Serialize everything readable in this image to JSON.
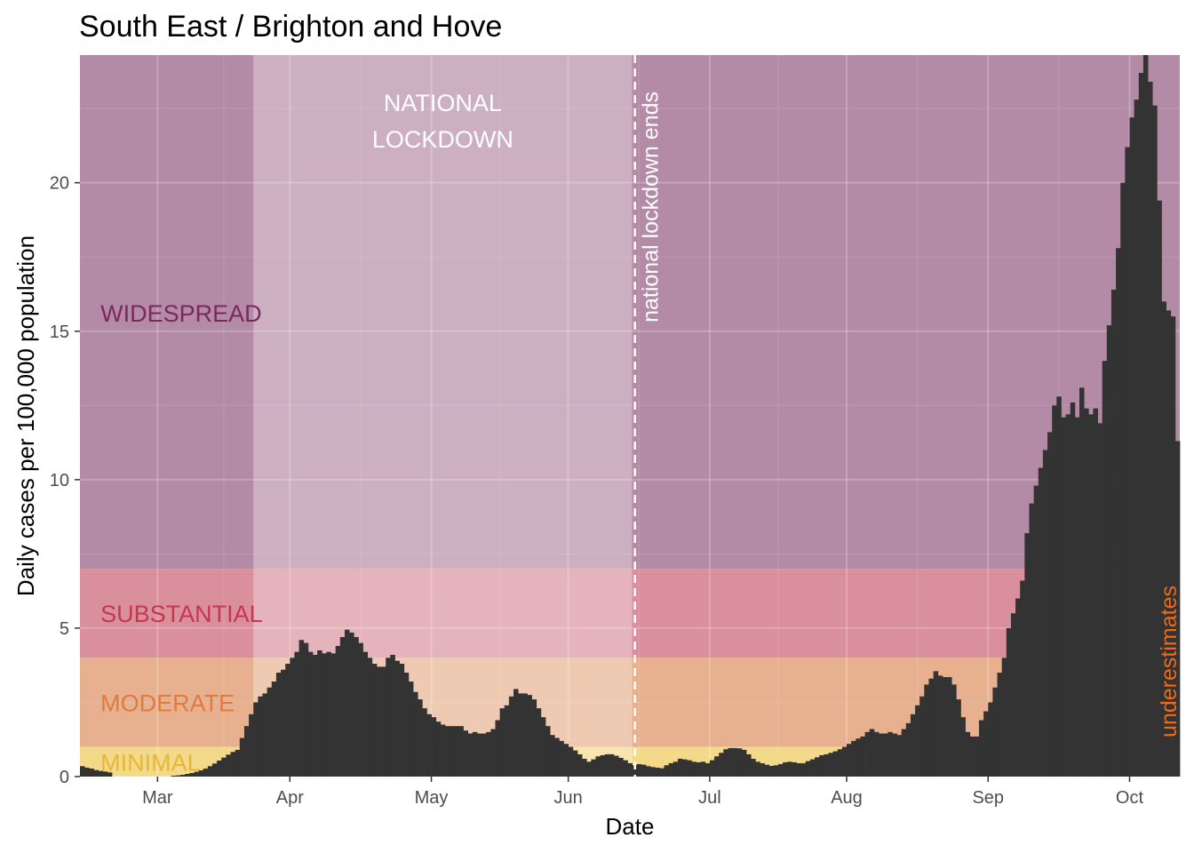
{
  "chart_data": {
    "type": "bar",
    "title": "South East / Brighton and Hove",
    "xlabel": "Date",
    "ylabel": "Daily cases per 100,000 population",
    "ylim": [
      0,
      24.3
    ],
    "y_ticks": [
      0,
      5,
      10,
      15,
      20
    ],
    "x_ticks": [
      "Mar",
      "Apr",
      "May",
      "Jun",
      "Jul",
      "Aug",
      "Sep",
      "Oct"
    ],
    "x_start_month": "Feb",
    "grid": true,
    "bar_color": "#333333",
    "zones": [
      {
        "label": "MINIMAL",
        "from": 0,
        "to": 1,
        "fill": "#f3d98a",
        "text_color": "#e6b836"
      },
      {
        "label": "MODERATE",
        "from": 1,
        "to": 4,
        "fill": "#e7b190",
        "text_color": "#e07b40"
      },
      {
        "label": "SUBSTANTIAL",
        "from": 4,
        "to": 7,
        "fill": "#d9909c",
        "text_color": "#c7364e"
      },
      {
        "label": "WIDESPREAD",
        "from": 7,
        "to": 24.3,
        "fill": "#b48ba6",
        "text_color": "#7d285d"
      }
    ],
    "lockdown": {
      "label_line1": "NATIONAL",
      "label_line2": "LOCKDOWN",
      "start_day": 38,
      "end_day": 121,
      "overlay": "#ffffff",
      "overlay_opacity": 0.32
    },
    "lockdown_end_annotation": "national lockdown ends",
    "underestimates_annotation": "underestimates",
    "underestimates_color": "#f06a16",
    "values": [
      0.35,
      0.3,
      0.27,
      0.22,
      0.19,
      0.17,
      0.14,
      0.0,
      0.0,
      0.0,
      0.0,
      0.0,
      0.0,
      0.0,
      0.0,
      0.0,
      0.0,
      0.0,
      0.0,
      0.0,
      0.03,
      0.04,
      0.06,
      0.09,
      0.12,
      0.16,
      0.21,
      0.27,
      0.35,
      0.44,
      0.54,
      0.64,
      0.74,
      0.83,
      0.9,
      1.3,
      1.7,
      2.1,
      2.5,
      2.7,
      2.8,
      3.0,
      3.2,
      3.5,
      3.6,
      3.8,
      4.0,
      4.2,
      4.6,
      4.5,
      4.2,
      4.1,
      4.25,
      4.15,
      4.2,
      4.15,
      4.4,
      4.7,
      4.95,
      4.85,
      4.7,
      4.5,
      4.2,
      4.0,
      3.8,
      3.7,
      3.7,
      4.0,
      4.1,
      3.9,
      3.8,
      3.5,
      3.2,
      2.85,
      2.6,
      2.3,
      2.1,
      2.0,
      1.85,
      1.75,
      1.7,
      1.7,
      1.7,
      1.7,
      1.55,
      1.45,
      1.5,
      1.45,
      1.45,
      1.5,
      1.6,
      1.9,
      2.3,
      2.4,
      2.7,
      2.95,
      2.8,
      2.8,
      2.75,
      2.6,
      2.3,
      2.0,
      1.7,
      1.4,
      1.3,
      1.2,
      1.1,
      1.0,
      0.88,
      0.75,
      0.6,
      0.5,
      0.58,
      0.68,
      0.72,
      0.75,
      0.75,
      0.7,
      0.63,
      0.55,
      0.45,
      0.38,
      0.42,
      0.4,
      0.35,
      0.32,
      0.3,
      0.28,
      0.38,
      0.45,
      0.5,
      0.6,
      0.58,
      0.55,
      0.5,
      0.48,
      0.5,
      0.45,
      0.55,
      0.68,
      0.8,
      0.92,
      0.96,
      0.96,
      0.95,
      0.9,
      0.75,
      0.6,
      0.5,
      0.45,
      0.4,
      0.36,
      0.38,
      0.42,
      0.48,
      0.5,
      0.48,
      0.45,
      0.45,
      0.52,
      0.58,
      0.65,
      0.72,
      0.75,
      0.8,
      0.85,
      0.92,
      1.0,
      1.1,
      1.2,
      1.28,
      1.35,
      1.5,
      1.6,
      1.5,
      1.45,
      1.45,
      1.5,
      1.45,
      1.4,
      1.6,
      1.8,
      2.1,
      2.4,
      2.7,
      3.1,
      3.3,
      3.55,
      3.4,
      3.35,
      3.35,
      3.1,
      2.6,
      2.0,
      1.5,
      1.35,
      1.35,
      1.9,
      2.2,
      2.5,
      3.0,
      3.5,
      4.0,
      5.0,
      5.5,
      6.0,
      6.6,
      8.2,
      9.2,
      9.8,
      10.4,
      11.0,
      11.6,
      12.5,
      12.8,
      12.1,
      12.2,
      12.6,
      12.1,
      13.1,
      12.4,
      12.2,
      12.4,
      11.9,
      14.0,
      15.2,
      16.4,
      17.8,
      20.0,
      21.2,
      22.2,
      22.8,
      23.7,
      24.3,
      23.4,
      22.6,
      19.4,
      16.0,
      15.7,
      15.5,
      11.3
    ],
    "lockdown_end_day": 122
  }
}
